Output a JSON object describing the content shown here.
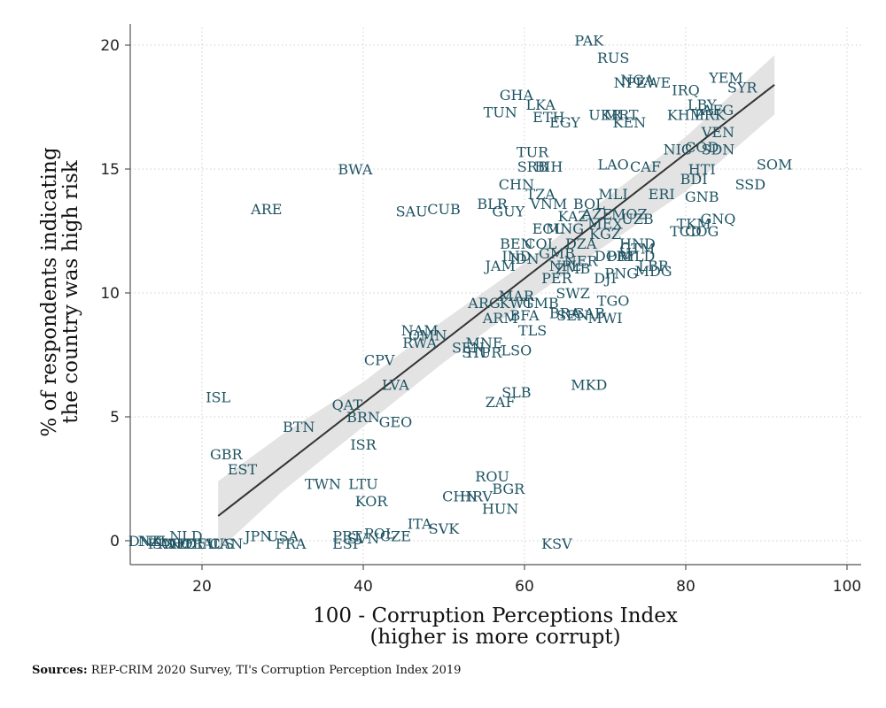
{
  "chart_data": {
    "type": "scatter",
    "xlabel": [
      "100 - Corruption Perceptions Index",
      "(higher is more corrupt)"
    ],
    "ylabel": [
      "% of respondents indicating",
      "the country was high risk"
    ],
    "xlim": [
      12,
      101
    ],
    "ylim": [
      -1,
      21
    ],
    "xticks": [
      20,
      40,
      60,
      80,
      100
    ],
    "yticks": [
      0,
      5,
      10,
      15,
      20
    ],
    "grid": true,
    "colors": {
      "label": "#1f5463",
      "fit_line": "#333333",
      "ci_band": "#e3e3e3",
      "grid": "#cfcfcf",
      "axis": "#555555"
    },
    "fit_line": {
      "x": [
        22,
        91
      ],
      "y": [
        1.0,
        18.4
      ]
    },
    "ci_band": {
      "x": [
        22,
        30,
        40,
        50,
        60,
        70,
        80,
        91
      ],
      "lower": [
        -0.4,
        2.0,
        4.6,
        7.2,
        9.6,
        11.9,
        14.1,
        17.2
      ],
      "upper": [
        2.4,
        4.3,
        6.4,
        8.9,
        11.2,
        13.8,
        16.3,
        19.6
      ]
    },
    "points": [
      {
        "label": "PAK",
        "x": 68,
        "y": 20.2
      },
      {
        "label": "RUS",
        "x": 71,
        "y": 19.5
      },
      {
        "label": "NGA",
        "x": 74,
        "y": 18.6
      },
      {
        "label": "ZWE",
        "x": 76,
        "y": 18.5
      },
      {
        "label": "NPL",
        "x": 73,
        "y": 18.5
      },
      {
        "label": "YEM",
        "x": 85,
        "y": 18.7
      },
      {
        "label": "IRQ",
        "x": 80,
        "y": 18.2
      },
      {
        "label": "SYR",
        "x": 87,
        "y": 18.3
      },
      {
        "label": "GHA",
        "x": 59,
        "y": 18.0
      },
      {
        "label": "LKA",
        "x": 62,
        "y": 17.6
      },
      {
        "label": "LBY",
        "x": 82,
        "y": 17.6
      },
      {
        "label": "AFG",
        "x": 84,
        "y": 17.4
      },
      {
        "label": "TUN",
        "x": 57,
        "y": 17.3
      },
      {
        "label": "ETH",
        "x": 63,
        "y": 17.1
      },
      {
        "label": "UKR",
        "x": 70,
        "y": 17.2
      },
      {
        "label": "MRT",
        "x": 72,
        "y": 17.2
      },
      {
        "label": "KEN",
        "x": 73,
        "y": 16.9
      },
      {
        "label": "EGY",
        "x": 65,
        "y": 16.9
      },
      {
        "label": "KHM",
        "x": 80,
        "y": 17.2
      },
      {
        "label": "PRK",
        "x": 83,
        "y": 17.2
      },
      {
        "label": "VEN",
        "x": 84,
        "y": 16.5
      },
      {
        "label": "COD",
        "x": 82,
        "y": 15.9
      },
      {
        "label": "SDN",
        "x": 84,
        "y": 15.8
      },
      {
        "label": "NIC",
        "x": 79,
        "y": 15.8
      },
      {
        "label": "TUR",
        "x": 61,
        "y": 15.7
      },
      {
        "label": "SRB",
        "x": 61,
        "y": 15.1
      },
      {
        "label": "BIH",
        "x": 63,
        "y": 15.1
      },
      {
        "label": "LAO",
        "x": 71,
        "y": 15.2
      },
      {
        "label": "CAF",
        "x": 75,
        "y": 15.1
      },
      {
        "label": "HTI",
        "x": 82,
        "y": 15.0
      },
      {
        "label": "SOM",
        "x": 91,
        "y": 15.2
      },
      {
        "label": "BWA",
        "x": 39,
        "y": 15.0
      },
      {
        "label": "BDI",
        "x": 81,
        "y": 14.6
      },
      {
        "label": "SSD",
        "x": 88,
        "y": 14.4
      },
      {
        "label": "CHN",
        "x": 59,
        "y": 14.4
      },
      {
        "label": "TZA",
        "x": 62,
        "y": 14.0
      },
      {
        "label": "MLI",
        "x": 71,
        "y": 14.0
      },
      {
        "label": "ERI",
        "x": 77,
        "y": 14.0
      },
      {
        "label": "GNB",
        "x": 82,
        "y": 13.9
      },
      {
        "label": "BLR",
        "x": 56,
        "y": 13.6
      },
      {
        "label": "VNM",
        "x": 63,
        "y": 13.6
      },
      {
        "label": "BOL",
        "x": 68,
        "y": 13.6
      },
      {
        "label": "GUY",
        "x": 58,
        "y": 13.3
      },
      {
        "label": "CUB",
        "x": 50,
        "y": 13.4
      },
      {
        "label": "SAU",
        "x": 46,
        "y": 13.3
      },
      {
        "label": "ARE",
        "x": 28,
        "y": 13.4
      },
      {
        "label": "KAZ",
        "x": 66,
        "y": 13.1
      },
      {
        "label": "AZE",
        "x": 69,
        "y": 13.2
      },
      {
        "label": "MOZ",
        "x": 73,
        "y": 13.2
      },
      {
        "label": "UZB",
        "x": 74,
        "y": 13.0
      },
      {
        "label": "GNQ",
        "x": 84,
        "y": 13.0
      },
      {
        "label": "TKM",
        "x": 81,
        "y": 12.8
      },
      {
        "label": "MEX",
        "x": 70,
        "y": 12.8
      },
      {
        "label": "TCD",
        "x": 80,
        "y": 12.5
      },
      {
        "label": "COG",
        "x": 82,
        "y": 12.5
      },
      {
        "label": "ECU",
        "x": 63,
        "y": 12.6
      },
      {
        "label": "MNG",
        "x": 65,
        "y": 12.6
      },
      {
        "label": "KGZ",
        "x": 70,
        "y": 12.4
      },
      {
        "label": "BEN",
        "x": 59,
        "y": 12.0
      },
      {
        "label": "COL",
        "x": 62,
        "y": 12.0
      },
      {
        "label": "DZA",
        "x": 67,
        "y": 12.0
      },
      {
        "label": "HND",
        "x": 74,
        "y": 12.0
      },
      {
        "label": "GTM",
        "x": 74,
        "y": 11.8
      },
      {
        "label": "GMB",
        "x": 64,
        "y": 11.6
      },
      {
        "label": "NPL",
        "x": 65,
        "y": 11.1
      },
      {
        "label": "IND",
        "x": 59,
        "y": 11.5
      },
      {
        "label": "IDN",
        "x": 60,
        "y": 11.4
      },
      {
        "label": "JAM",
        "x": 57,
        "y": 11.1
      },
      {
        "label": "NER",
        "x": 67,
        "y": 11.3
      },
      {
        "label": "DOM",
        "x": 71,
        "y": 11.5
      },
      {
        "label": "PRY",
        "x": 72,
        "y": 11.5
      },
      {
        "label": "MLD",
        "x": 74,
        "y": 11.5
      },
      {
        "label": "ZMB",
        "x": 66,
        "y": 11.0
      },
      {
        "label": "LBR",
        "x": 76,
        "y": 11.1
      },
      {
        "label": "PER",
        "x": 64,
        "y": 10.6
      },
      {
        "label": "PNG",
        "x": 72,
        "y": 10.8
      },
      {
        "label": "DJI",
        "x": 70,
        "y": 10.6
      },
      {
        "label": "MDG",
        "x": 76,
        "y": 10.9
      },
      {
        "label": "SWZ",
        "x": 66,
        "y": 10.0
      },
      {
        "label": "TGO",
        "x": 71,
        "y": 9.7
      },
      {
        "label": "ARG",
        "x": 55,
        "y": 9.6
      },
      {
        "label": "MAR",
        "x": 59,
        "y": 9.9
      },
      {
        "label": "KWT",
        "x": 59,
        "y": 9.6
      },
      {
        "label": "GMB",
        "x": 62,
        "y": 9.6
      },
      {
        "label": "BFA",
        "x": 60,
        "y": 9.1
      },
      {
        "label": "ARM",
        "x": 57,
        "y": 9.0
      },
      {
        "label": "BRA",
        "x": 65,
        "y": 9.2
      },
      {
        "label": "SEN",
        "x": 66,
        "y": 9.1
      },
      {
        "label": "GAB",
        "x": 68,
        "y": 9.2
      },
      {
        "label": "MWI",
        "x": 70,
        "y": 9.0
      },
      {
        "label": "TLS",
        "x": 61,
        "y": 8.5
      },
      {
        "label": "NAM",
        "x": 47,
        "y": 8.5
      },
      {
        "label": "OMN",
        "x": 48,
        "y": 8.3
      },
      {
        "label": "RWA",
        "x": 47,
        "y": 8.0
      },
      {
        "label": "MNE",
        "x": 55,
        "y": 8.0
      },
      {
        "label": "SEN",
        "x": 53,
        "y": 7.8
      },
      {
        "label": "LSO",
        "x": 59,
        "y": 7.7
      },
      {
        "label": "STP",
        "x": 54,
        "y": 7.6
      },
      {
        "label": "HUR",
        "x": 55,
        "y": 7.6
      },
      {
        "label": "CPV",
        "x": 42,
        "y": 7.3
      },
      {
        "label": "MKD",
        "x": 68,
        "y": 6.3
      },
      {
        "label": "LVA",
        "x": 44,
        "y": 6.3
      },
      {
        "label": "SLB",
        "x": 59,
        "y": 6.0
      },
      {
        "label": "ISL",
        "x": 22,
        "y": 5.8
      },
      {
        "label": "ZAF",
        "x": 57,
        "y": 5.6
      },
      {
        "label": "QAT",
        "x": 38,
        "y": 5.5
      },
      {
        "label": "BRN",
        "x": 40,
        "y": 5.0
      },
      {
        "label": "GEO",
        "x": 44,
        "y": 4.8
      },
      {
        "label": "BTN",
        "x": 32,
        "y": 4.6
      },
      {
        "label": "ISR",
        "x": 40,
        "y": 3.9
      },
      {
        "label": "GBR",
        "x": 23,
        "y": 3.5
      },
      {
        "label": "EST",
        "x": 25,
        "y": 2.9
      },
      {
        "label": "ROU",
        "x": 56,
        "y": 2.6
      },
      {
        "label": "TWN",
        "x": 35,
        "y": 2.3
      },
      {
        "label": "LTU",
        "x": 40,
        "y": 2.3
      },
      {
        "label": "BGR",
        "x": 58,
        "y": 2.1
      },
      {
        "label": "CHN",
        "x": 52,
        "y": 1.8
      },
      {
        "label": "HRV",
        "x": 54,
        "y": 1.8
      },
      {
        "label": "KOR",
        "x": 41,
        "y": 1.6
      },
      {
        "label": "HUN",
        "x": 57,
        "y": 1.3
      },
      {
        "label": "ITA",
        "x": 47,
        "y": 0.7
      },
      {
        "label": "SVK",
        "x": 50,
        "y": 0.5
      },
      {
        "label": "JPN",
        "x": 27,
        "y": 0.2
      },
      {
        "label": "USA",
        "x": 30,
        "y": 0.2
      },
      {
        "label": "PRT",
        "x": 38,
        "y": 0.2
      },
      {
        "label": "SVN",
        "x": 40,
        "y": 0.1
      },
      {
        "label": "POL",
        "x": 42,
        "y": 0.3
      },
      {
        "label": "CZE",
        "x": 44,
        "y": 0.2
      },
      {
        "label": "FRA",
        "x": 31,
        "y": -0.1
      },
      {
        "label": "ESP",
        "x": 38,
        "y": -0.1
      },
      {
        "label": "KSV",
        "x": 64,
        "y": -0.1
      },
      {
        "label": "NLD",
        "x": 18,
        "y": 0.2
      },
      {
        "label": "DNK",
        "x": 13,
        "y": 0.0
      },
      {
        "label": "NZL",
        "x": 14,
        "y": 0.0
      },
      {
        "label": "FIN",
        "x": 15,
        "y": -0.1
      },
      {
        "label": "SWE",
        "x": 16,
        "y": -0.1
      },
      {
        "label": "CHE",
        "x": 17,
        "y": -0.1
      },
      {
        "label": "NOR",
        "x": 18,
        "y": -0.1
      },
      {
        "label": "DEU",
        "x": 20,
        "y": -0.1
      },
      {
        "label": "AUS",
        "x": 22,
        "y": -0.1
      },
      {
        "label": "CAN",
        "x": 23,
        "y": -0.1
      }
    ]
  },
  "footer": {
    "source_prefix": "Sources:",
    "source_text": "REP-CRIM 2020 Survey, TI's Corruption Perception Index 2019"
  }
}
